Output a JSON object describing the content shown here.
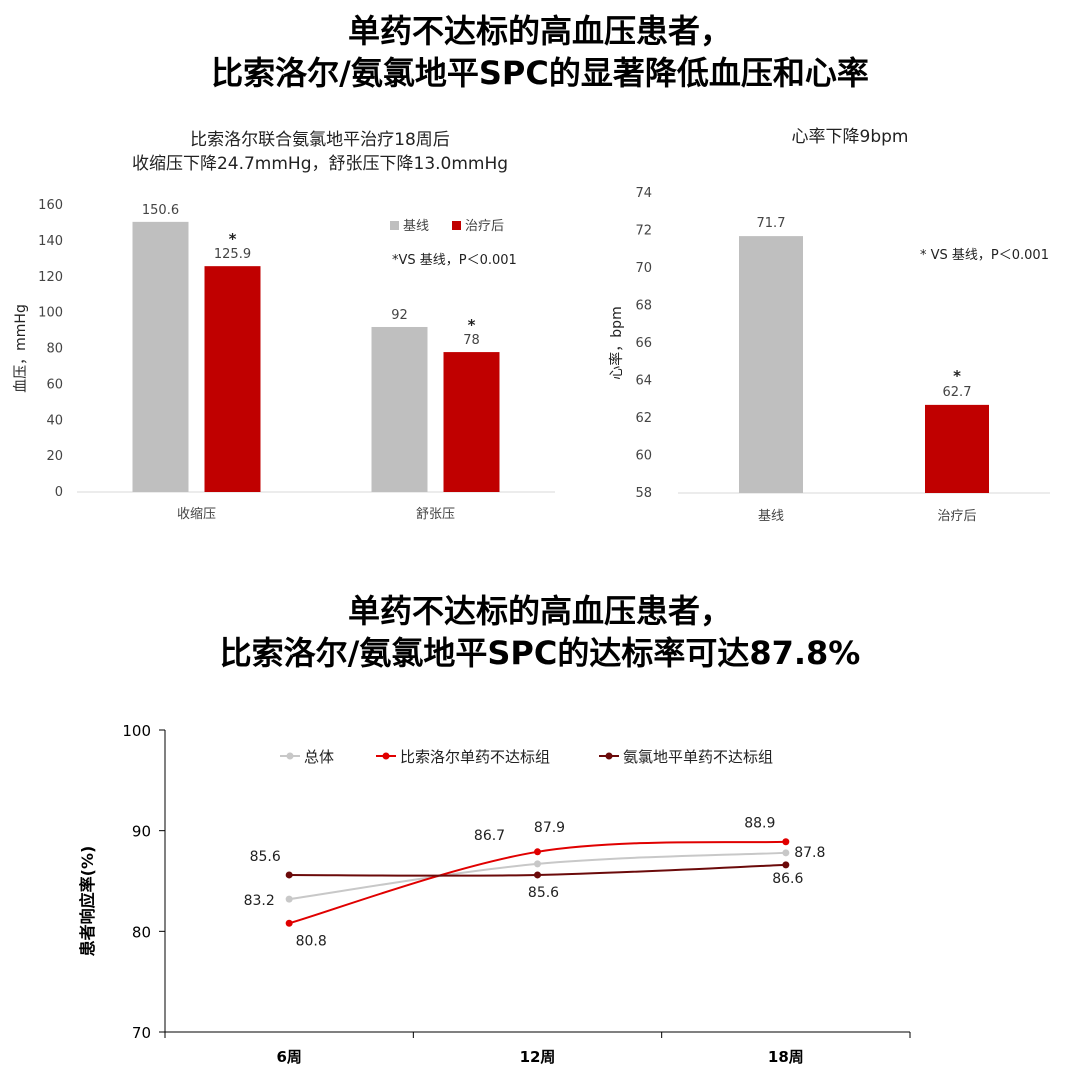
{
  "top_headline": {
    "line1": "单药不达标的高血压患者，",
    "line2": "比索洛尔/氨氯地平SPC的显著降低血压和心率"
  },
  "bottom_headline": {
    "line1": "单药不达标的高血压患者，",
    "line2": "比索洛尔/氨氯地平SPC的达标率可达87.8%"
  },
  "chart_data": [
    {
      "type": "bar",
      "title_lines": [
        "比索洛尔联合氨氯地平治疗18周后",
        "收缩压下降24.7mmHg，舒张压下降13.0mmHg"
      ],
      "ylabel": "血压，mmHg",
      "categories": [
        "收缩压",
        "舒张压"
      ],
      "series": [
        {
          "name": "基线",
          "values": [
            150.6,
            92
          ],
          "color": "#BFBFBF"
        },
        {
          "name": "治疗后",
          "values": [
            125.9,
            78
          ],
          "color": "#C00000"
        }
      ],
      "value_labels": [
        [
          "150.6",
          "92"
        ],
        [
          "125.9",
          "78"
        ]
      ],
      "significance_marker": "*",
      "annotation": "*VS 基线，P＜0.001",
      "ylim": [
        0,
        160
      ],
      "yticks": [
        0,
        20,
        40,
        60,
        80,
        100,
        120,
        140,
        160
      ],
      "legend_position": "top-right",
      "grid": false
    },
    {
      "type": "bar",
      "title": "心率下降9bpm",
      "ylabel": "心率，bpm",
      "categories": [
        "基线",
        "治疗后"
      ],
      "values": [
        71.7,
        62.7
      ],
      "value_labels": [
        "71.7",
        "62.7"
      ],
      "colors": [
        "#BFBFBF",
        "#C00000"
      ],
      "significance_marker": "*",
      "annotation": "* VS 基线，P＜0.001",
      "ylim": [
        58,
        74
      ],
      "yticks": [
        58,
        60,
        62,
        64,
        66,
        68,
        70,
        72,
        74
      ],
      "grid": false
    },
    {
      "type": "line",
      "ylabel": "患者响应率(%)",
      "categories": [
        "6周",
        "12周",
        "18周"
      ],
      "series": [
        {
          "name": "总体",
          "values": [
            83.2,
            86.7,
            87.8
          ],
          "labels": [
            "83.2",
            "86.7",
            "87.8"
          ],
          "color": "#C8C8C8"
        },
        {
          "name": "比索洛尔单药不达标组",
          "values": [
            80.8,
            87.9,
            88.9
          ],
          "labels": [
            "80.8",
            "87.9",
            "88.9"
          ],
          "color": "#E00000"
        },
        {
          "name": "氨氯地平单药不达标组",
          "values": [
            85.6,
            85.6,
            86.6
          ],
          "labels": [
            "85.6",
            "85.6",
            "86.6"
          ],
          "color": "#6B0A0A"
        }
      ],
      "ylim": [
        70,
        100
      ],
      "yticks": [
        70,
        80,
        90,
        100
      ],
      "legend_position": "top",
      "grid": false
    }
  ]
}
